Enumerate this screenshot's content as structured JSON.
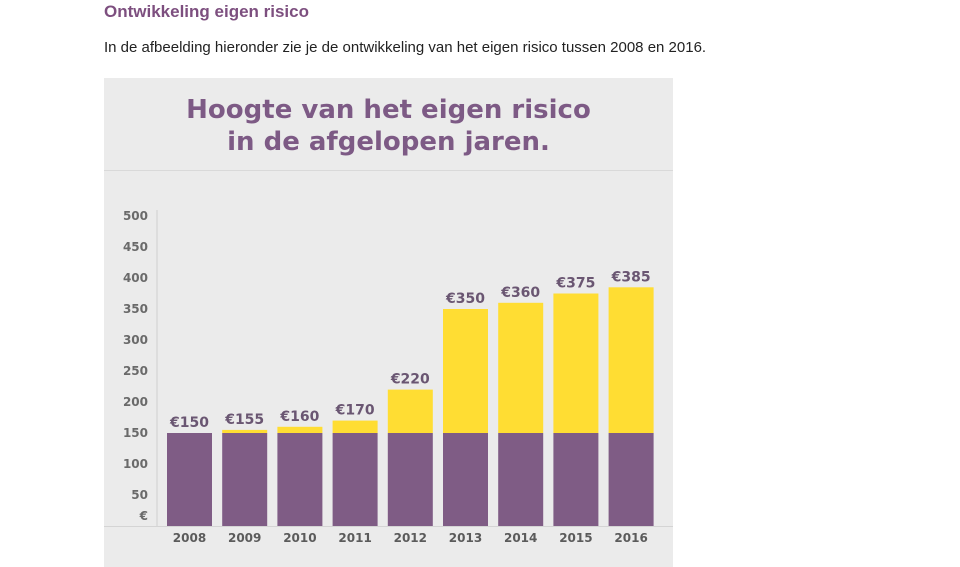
{
  "article": {
    "heading": "Ontwikkeling eigen risico",
    "intro": "In de afbeelding hieronder zie je de ontwikkeling van het eigen risico tussen 2008 en 2016."
  },
  "colors": {
    "heading": "#7d4f7f",
    "base_bar": "#7f5c85",
    "increase_bar": "#ffdd33",
    "panel_background": "#ebebeb"
  },
  "chart_data": {
    "type": "bar",
    "stacked": true,
    "title_lines": [
      "Hoogte van het eigen risico",
      "in de afgelopen jaren."
    ],
    "y_unit_label": "€",
    "categories": [
      "2008",
      "2009",
      "2010",
      "2011",
      "2012",
      "2013",
      "2014",
      "2015",
      "2016"
    ],
    "series": [
      {
        "values": [
          150,
          150,
          150,
          150,
          150,
          150,
          150,
          150,
          150
        ],
        "color": "#7f5c85"
      },
      {
        "values": [
          0,
          5,
          10,
          20,
          70,
          200,
          210,
          225,
          235
        ],
        "color": "#ffdd33"
      }
    ],
    "totals": [
      150,
      155,
      160,
      170,
      220,
      350,
      360,
      375,
      385
    ],
    "value_labels": [
      "€150",
      "€155",
      "€160",
      "€170",
      "€220",
      "€350",
      "€360",
      "€375",
      "€385"
    ],
    "y_ticks": [
      "50",
      "100",
      "150",
      "200",
      "250",
      "300",
      "350",
      "400",
      "450",
      "500"
    ],
    "ylim": [
      0,
      500
    ],
    "grid": false,
    "legend": false
  }
}
